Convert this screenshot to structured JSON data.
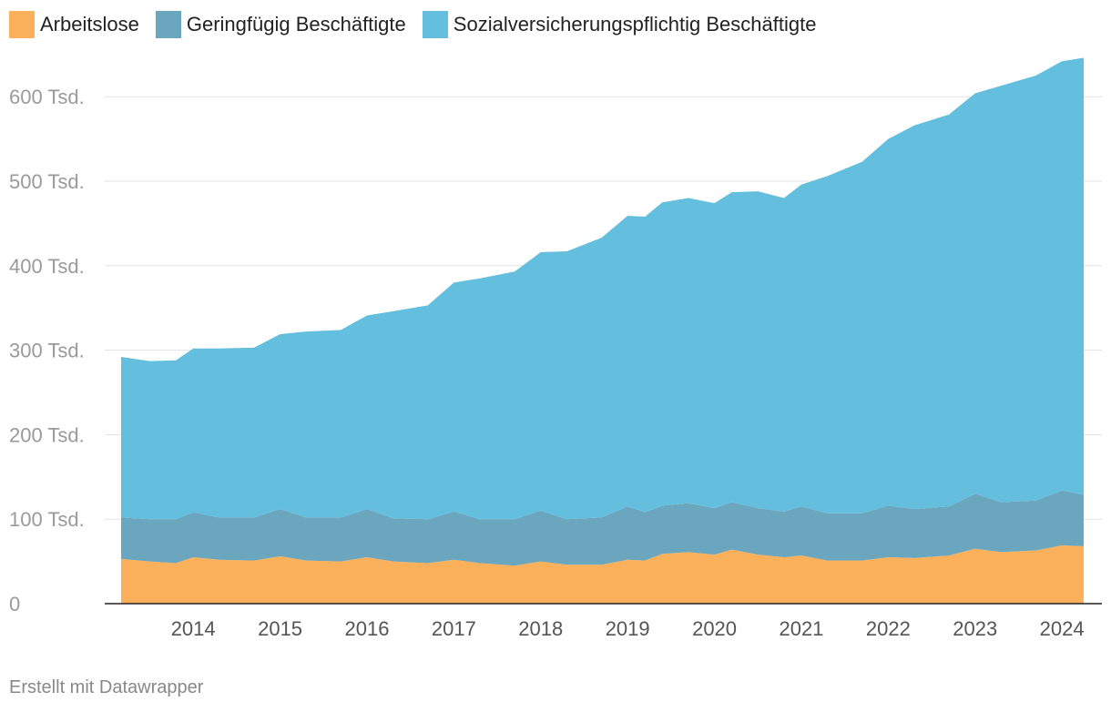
{
  "legend": [
    {
      "label": "Arbeitslose",
      "color": "#fbb05b"
    },
    {
      "label": "Geringfügig Beschäftigte",
      "color": "#6aa6be"
    },
    {
      "label": "Sozialversicherungspflichtig Beschäftigte",
      "color": "#64bedd"
    }
  ],
  "footer": "Erstellt mit Datawrapper",
  "chart_data": {
    "type": "area",
    "stacked": true,
    "x_range": [
      2013.67,
      2024.75
    ],
    "ylim": [
      0,
      700
    ],
    "y_ticks": [
      {
        "value": 0,
        "label": "0"
      },
      {
        "value": 100,
        "label": "100 Tsd."
      },
      {
        "value": 200,
        "label": "200 Tsd."
      },
      {
        "value": 300,
        "label": "300 Tsd."
      },
      {
        "value": 400,
        "label": "400 Tsd."
      },
      {
        "value": 500,
        "label": "500 Tsd."
      },
      {
        "value": 600,
        "label": "600 Tsd."
      }
    ],
    "x_ticks": [
      "2014",
      "2015",
      "2016",
      "2017",
      "2018",
      "2019",
      "2020",
      "2021",
      "2022",
      "2023",
      "2024"
    ],
    "grid": true,
    "series": [
      {
        "name": "Arbeitslose",
        "color": "#fbb05b",
        "points": [
          [
            2013.67,
            53
          ],
          [
            2014.0,
            50
          ],
          [
            2014.3,
            48
          ],
          [
            2014.5,
            55
          ],
          [
            2014.8,
            52
          ],
          [
            2015.2,
            51
          ],
          [
            2015.5,
            56
          ],
          [
            2015.8,
            51
          ],
          [
            2016.2,
            50
          ],
          [
            2016.5,
            55
          ],
          [
            2016.8,
            50
          ],
          [
            2017.2,
            48
          ],
          [
            2017.5,
            52
          ],
          [
            2017.8,
            48
          ],
          [
            2018.2,
            45
          ],
          [
            2018.5,
            50
          ],
          [
            2018.8,
            46
          ],
          [
            2019.2,
            46
          ],
          [
            2019.5,
            52
          ],
          [
            2019.7,
            51
          ],
          [
            2019.9,
            59
          ],
          [
            2020.2,
            61
          ],
          [
            2020.5,
            58
          ],
          [
            2020.7,
            64
          ],
          [
            2021.0,
            58
          ],
          [
            2021.3,
            55
          ],
          [
            2021.5,
            57
          ],
          [
            2021.8,
            51
          ],
          [
            2022.2,
            51
          ],
          [
            2022.5,
            55
          ],
          [
            2022.8,
            54
          ],
          [
            2023.2,
            57
          ],
          [
            2023.5,
            65
          ],
          [
            2023.8,
            61
          ],
          [
            2024.2,
            63
          ],
          [
            2024.5,
            69
          ],
          [
            2024.75,
            68
          ]
        ]
      },
      {
        "name": "Geringfügig Beschäftigte",
        "color": "#6aa6be",
        "points": [
          [
            2013.67,
            49
          ],
          [
            2014.0,
            50
          ],
          [
            2014.3,
            52
          ],
          [
            2014.5,
            53
          ],
          [
            2014.8,
            50
          ],
          [
            2015.2,
            51
          ],
          [
            2015.5,
            56
          ],
          [
            2015.8,
            51
          ],
          [
            2016.2,
            52
          ],
          [
            2016.5,
            57
          ],
          [
            2016.8,
            51
          ],
          [
            2017.2,
            52
          ],
          [
            2017.5,
            57
          ],
          [
            2017.8,
            52
          ],
          [
            2018.2,
            55
          ],
          [
            2018.5,
            60
          ],
          [
            2018.8,
            54
          ],
          [
            2019.2,
            56
          ],
          [
            2019.5,
            63
          ],
          [
            2019.7,
            57
          ],
          [
            2019.9,
            57
          ],
          [
            2020.2,
            58
          ],
          [
            2020.5,
            55
          ],
          [
            2020.7,
            56
          ],
          [
            2021.0,
            55
          ],
          [
            2021.3,
            54
          ],
          [
            2021.5,
            58
          ],
          [
            2021.8,
            56
          ],
          [
            2022.2,
            56
          ],
          [
            2022.5,
            61
          ],
          [
            2022.8,
            58
          ],
          [
            2023.2,
            58
          ],
          [
            2023.5,
            65
          ],
          [
            2023.8,
            59
          ],
          [
            2024.2,
            59
          ],
          [
            2024.5,
            65
          ],
          [
            2024.75,
            61
          ]
        ]
      },
      {
        "name": "Sozialversicherungspflichtig Beschäftigte",
        "color": "#64bedd",
        "points": [
          [
            2013.67,
            190
          ],
          [
            2014.0,
            187
          ],
          [
            2014.3,
            188
          ],
          [
            2014.5,
            194
          ],
          [
            2014.8,
            200
          ],
          [
            2015.2,
            201
          ],
          [
            2015.5,
            207
          ],
          [
            2015.8,
            220
          ],
          [
            2016.2,
            222
          ],
          [
            2016.5,
            229
          ],
          [
            2016.8,
            245
          ],
          [
            2017.2,
            253
          ],
          [
            2017.5,
            271
          ],
          [
            2017.8,
            285
          ],
          [
            2018.2,
            293
          ],
          [
            2018.5,
            306
          ],
          [
            2018.8,
            317
          ],
          [
            2019.2,
            331
          ],
          [
            2019.5,
            344
          ],
          [
            2019.7,
            350
          ],
          [
            2019.9,
            359
          ],
          [
            2020.2,
            361
          ],
          [
            2020.5,
            361
          ],
          [
            2020.7,
            367
          ],
          [
            2021.0,
            375
          ],
          [
            2021.3,
            371
          ],
          [
            2021.5,
            381
          ],
          [
            2021.8,
            399
          ],
          [
            2022.2,
            416
          ],
          [
            2022.5,
            434
          ],
          [
            2022.8,
            454
          ],
          [
            2023.2,
            464
          ],
          [
            2023.5,
            474
          ],
          [
            2023.8,
            493
          ],
          [
            2024.2,
            503
          ],
          [
            2024.5,
            508
          ],
          [
            2024.75,
            517
          ]
        ]
      }
    ]
  }
}
